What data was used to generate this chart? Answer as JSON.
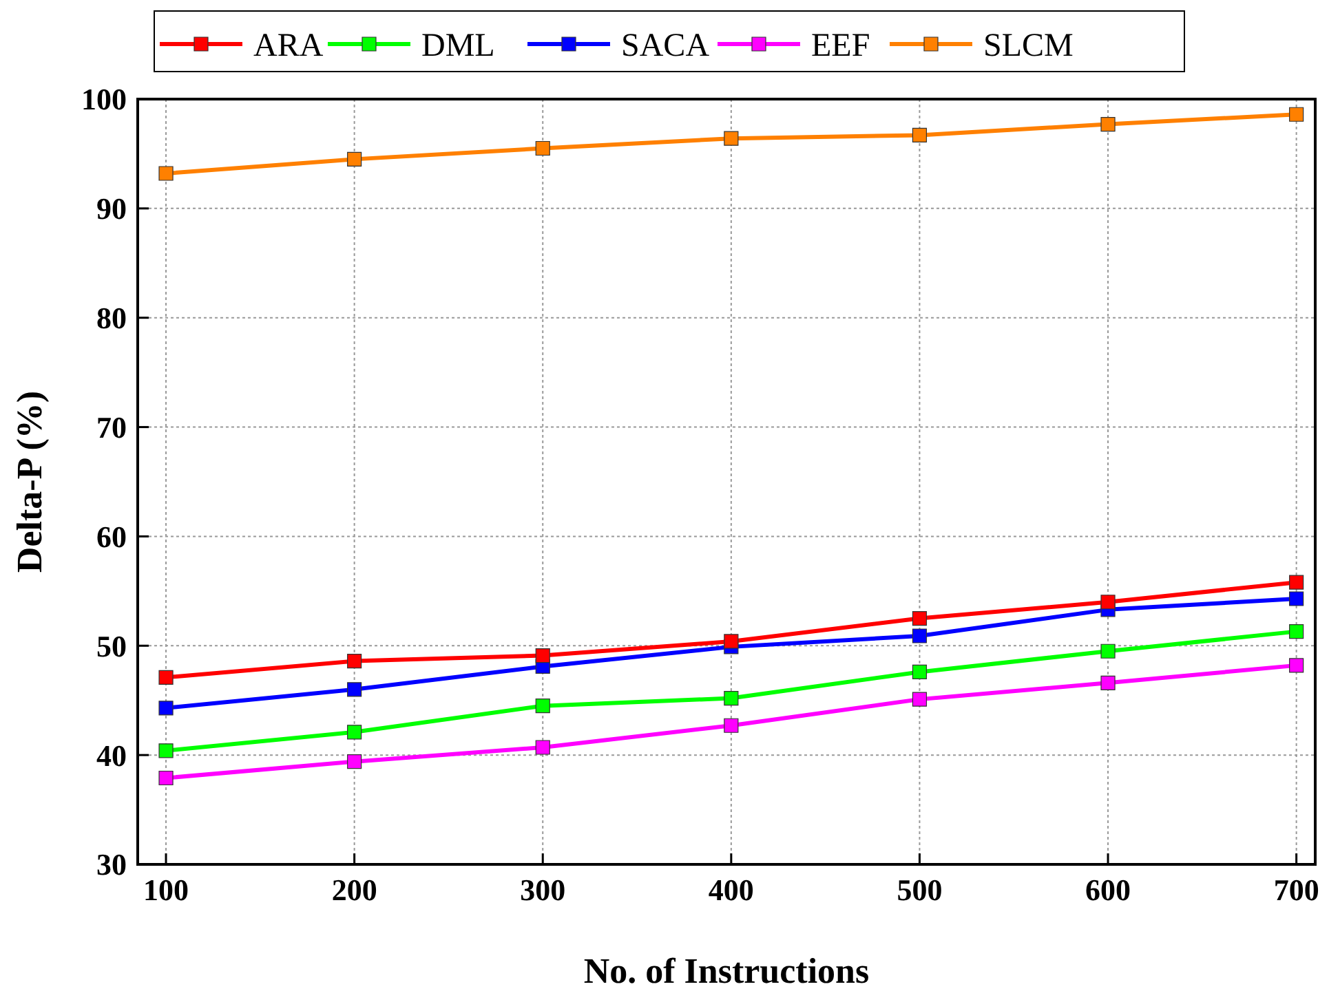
{
  "chart_data": {
    "type": "line",
    "xlabel": "No. of  Instructions",
    "ylabel": "Delta-P (%)",
    "x": [
      100,
      200,
      300,
      400,
      500,
      600,
      700
    ],
    "xlim": [
      85,
      710
    ],
    "xticks": [
      100,
      200,
      300,
      400,
      500,
      600,
      700
    ],
    "ylim": [
      30,
      100
    ],
    "yticks": [
      30,
      40,
      50,
      60,
      70,
      80,
      90,
      100
    ],
    "grid": true,
    "legend": "top",
    "marker": "square",
    "line_style": "solid",
    "series": [
      {
        "name": "ARA",
        "color": "#ff0000",
        "values": [
          47.1,
          48.6,
          49.1,
          50.4,
          52.5,
          54.0,
          55.8
        ]
      },
      {
        "name": "DML",
        "color": "#00ff00",
        "values": [
          40.4,
          42.1,
          44.5,
          45.2,
          47.6,
          49.5,
          51.3
        ]
      },
      {
        "name": "SACA",
        "color": "#0000ff",
        "values": [
          44.3,
          46.0,
          48.1,
          49.9,
          50.9,
          53.3,
          54.3
        ]
      },
      {
        "name": "EEF",
        "color": "#ff00ff",
        "values": [
          37.9,
          39.4,
          40.7,
          42.7,
          45.1,
          46.6,
          48.2
        ]
      },
      {
        "name": "SLCM",
        "color": "#ff8000",
        "values": [
          93.2,
          94.5,
          95.5,
          96.4,
          96.7,
          97.7,
          98.6
        ]
      }
    ]
  }
}
